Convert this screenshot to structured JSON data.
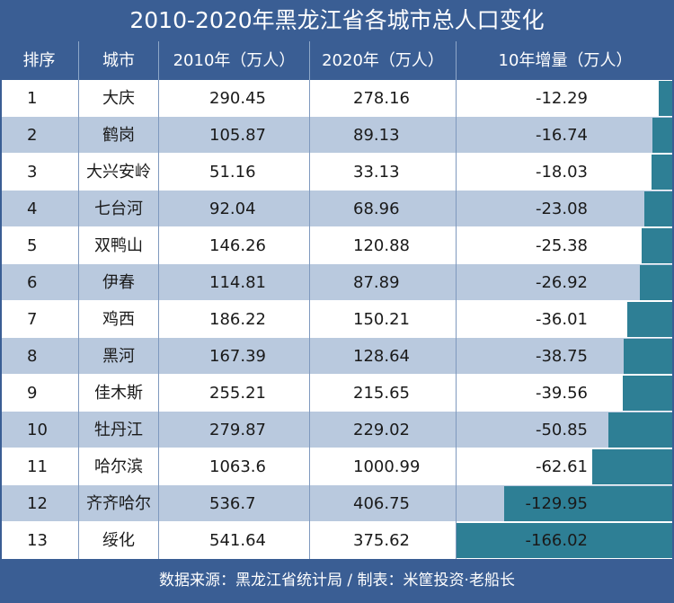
{
  "title": "2010-2020年黑龙江省各城市总人口变化",
  "footer": "数据来源：黑龙江省统计局 / 制表：米筐投资·老船长",
  "colors": {
    "header_bg": "#3a5e94",
    "row_alt": "#b9c9de",
    "bar": "#2e7f95"
  },
  "chart_data": {
    "type": "table",
    "columns": [
      "排序",
      "城市",
      "2010年（万人）",
      "2020年（万人）",
      "10年增量（万人）"
    ],
    "rows": [
      {
        "rank": "1",
        "city": "大庆",
        "y2010": "290.45",
        "y2020": "278.16",
        "change": "-12.29",
        "change_value": -12.29
      },
      {
        "rank": "2",
        "city": "鹤岗",
        "y2010": "105.87",
        "y2020": "89.13",
        "change": "-16.74",
        "change_value": -16.74
      },
      {
        "rank": "3",
        "city": "大兴安岭",
        "y2010": "51.16",
        "y2020": "33.13",
        "change": "-18.03",
        "change_value": -18.03
      },
      {
        "rank": "4",
        "city": "七台河",
        "y2010": "92.04",
        "y2020": "68.96",
        "change": "-23.08",
        "change_value": -23.08
      },
      {
        "rank": "5",
        "city": "双鸭山",
        "y2010": "146.26",
        "y2020": "120.88",
        "change": "-25.38",
        "change_value": -25.38
      },
      {
        "rank": "6",
        "city": "伊春",
        "y2010": "114.81",
        "y2020": "87.89",
        "change": "-26.92",
        "change_value": -26.92
      },
      {
        "rank": "7",
        "city": "鸡西",
        "y2010": "186.22",
        "y2020": "150.21",
        "change": "-36.01",
        "change_value": -36.01
      },
      {
        "rank": "8",
        "city": "黑河",
        "y2010": "167.39",
        "y2020": "128.64",
        "change": "-38.75",
        "change_value": -38.75
      },
      {
        "rank": "9",
        "city": "佳木斯",
        "y2010": "255.21",
        "y2020": "215.65",
        "change": "-39.56",
        "change_value": -39.56
      },
      {
        "rank": "10",
        "city": "牡丹江",
        "y2010": "279.87",
        "y2020": "229.02",
        "change": "-50.85",
        "change_value": -50.85
      },
      {
        "rank": "11",
        "city": "哈尔滨",
        "y2010": "1063.6",
        "y2020": "1000.99",
        "change": "-62.61",
        "change_value": -62.61
      },
      {
        "rank": "12",
        "city": "齐齐哈尔",
        "y2010": "536.7",
        "y2020": "406.75",
        "change": "-129.95",
        "change_value": -129.95
      },
      {
        "rank": "13",
        "city": "绥化",
        "y2010": "541.64",
        "y2020": "375.62",
        "change": "-166.02",
        "change_value": -166.02
      }
    ]
  }
}
